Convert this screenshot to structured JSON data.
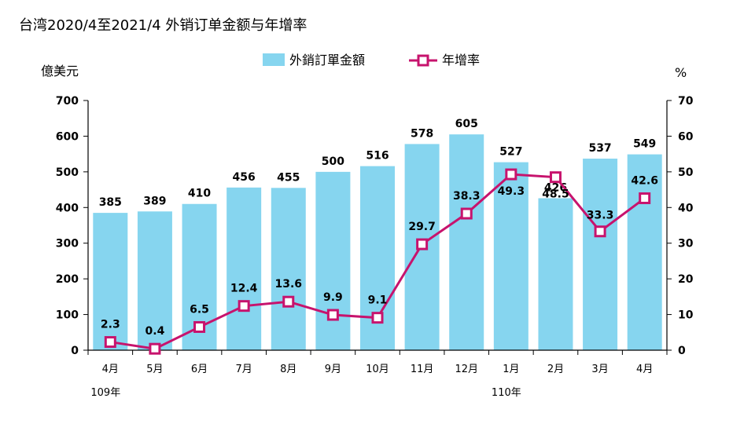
{
  "title": "台湾2020/4至2021/4 外销订单金额与年增率",
  "chart_data": {
    "type": "bar",
    "categories": [
      "4月",
      "5月",
      "6月",
      "7月",
      "8月",
      "9月",
      "10月",
      "11月",
      "12月",
      "1月",
      "2月",
      "3月",
      "4月"
    ],
    "year_labels": [
      {
        "index": 0,
        "text": "109年"
      },
      {
        "index": 9,
        "text": "110年"
      }
    ],
    "series": [
      {
        "name": "外銷訂單金額",
        "type": "bar",
        "axis": "left",
        "values": [
          385,
          389,
          410,
          456,
          455,
          500,
          516,
          578,
          605,
          527,
          426,
          537,
          549
        ],
        "color": "#86d5ef"
      },
      {
        "name": "年增率",
        "type": "line",
        "axis": "right",
        "values": [
          2.3,
          0.4,
          6.5,
          12.4,
          13.6,
          9.9,
          9.1,
          29.7,
          38.3,
          49.3,
          48.5,
          33.3,
          42.6
        ],
        "color": "#c7136d"
      }
    ],
    "ylabel_left": "億美元",
    "ylabel_right": "%",
    "ylim_left": [
      0,
      700
    ],
    "ylim_right": [
      0,
      70
    ],
    "yticks_left": [
      "0",
      "100",
      "200",
      "300",
      "400",
      "500",
      "600",
      "700"
    ],
    "yticks_right": [
      "0",
      "10",
      "20",
      "30",
      "40",
      "50",
      "60",
      "70"
    ],
    "grid": false,
    "legend": "top"
  }
}
